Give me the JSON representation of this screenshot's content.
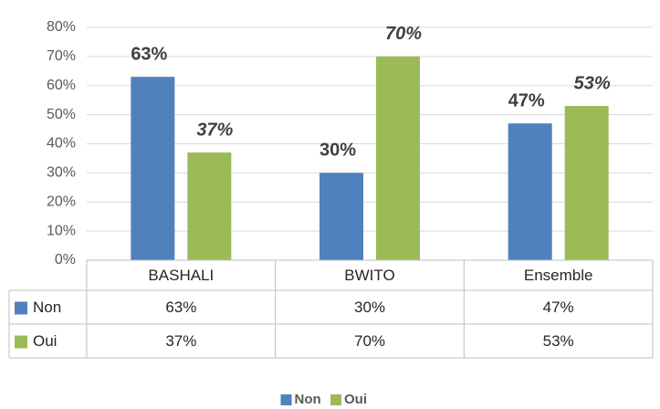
{
  "chart_data": {
    "type": "bar",
    "categories": [
      "BASHALI",
      "BWITO",
      "Ensemble"
    ],
    "series": [
      {
        "name": "Non",
        "color": "#4f81bd",
        "values": [
          63,
          30,
          47
        ],
        "value_labels": [
          "63%",
          "30%",
          "47%"
        ]
      },
      {
        "name": "Oui",
        "color": "#9bbb59",
        "values": [
          37,
          70,
          53
        ],
        "value_labels": [
          "37%",
          "70%",
          "53%"
        ]
      }
    ],
    "ylim": [
      0,
      80
    ],
    "yticks": [
      {
        "value": 0,
        "label": "0%"
      },
      {
        "value": 10,
        "label": "10%"
      },
      {
        "value": 20,
        "label": "20%"
      },
      {
        "value": 30,
        "label": "30%"
      },
      {
        "value": 40,
        "label": "40%"
      },
      {
        "value": 50,
        "label": "50%"
      },
      {
        "value": 60,
        "label": "60%"
      },
      {
        "value": 70,
        "label": "70%"
      },
      {
        "value": 80,
        "label": "80%"
      }
    ],
    "grid": true,
    "legend": "bottom",
    "data_table": true
  }
}
